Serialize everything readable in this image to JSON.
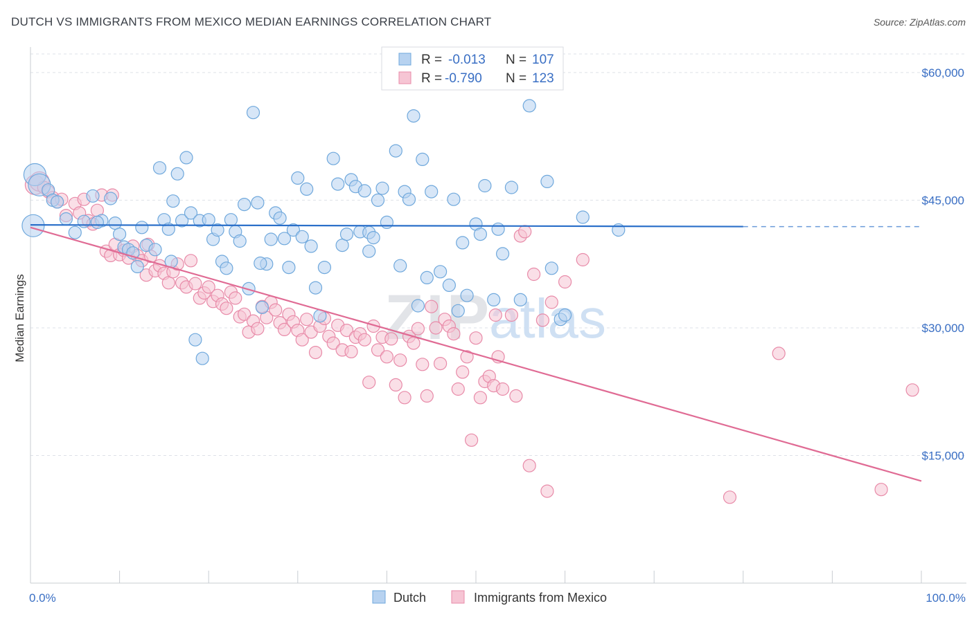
{
  "title": "DUTCH VS IMMIGRANTS FROM MEXICO MEDIAN EARNINGS CORRELATION CHART",
  "source": "Source: ZipAtlas.com",
  "watermark": {
    "zip": "ZIP",
    "atlas": "atlas"
  },
  "colors": {
    "dutch": "#6fa8dc",
    "dutch_fill": "#b7d2f0",
    "dutch_line": "#2a6fc9",
    "mexico": "#e88aa8",
    "mexico_fill": "#f6c5d4",
    "mexico_line": "#e06b94",
    "tick_label": "#3a6fc4",
    "grid": "#dde1e7"
  },
  "legend": {
    "rows": [
      {
        "r_label": "R =",
        "r_value": "-0.013",
        "n_label": "N =",
        "n_value": "107"
      },
      {
        "r_label": "R =",
        "r_value": "-0.790",
        "n_label": "N =",
        "n_value": "123"
      }
    ]
  },
  "bottom_legend": [
    "Dutch",
    "Immigrants from Mexico"
  ],
  "chart_data": {
    "type": "scatter",
    "title": "DUTCH VS IMMIGRANTS FROM MEXICO MEDIAN EARNINGS CORRELATION CHART",
    "xlabel": "",
    "ylabel": "Median Earnings",
    "xlim": [
      0,
      100
    ],
    "ylim": [
      0,
      63000
    ],
    "x_tick_labels": [
      "0.0%",
      "100.0%"
    ],
    "y_ticks": [
      15000,
      30000,
      45000,
      60000
    ],
    "y_tick_labels": [
      "$15,000",
      "$30,000",
      "$45,000",
      "$60,000"
    ],
    "grid": true,
    "legend_position": "top-center",
    "series": [
      {
        "name": "Dutch",
        "r": -0.013,
        "n": 107,
        "trend": {
          "x": [
            0,
            80
          ],
          "y": [
            42100,
            41900
          ],
          "dashed_to_x": 100
        },
        "points": [
          [
            0.5,
            48000
          ],
          [
            0.3,
            42000
          ],
          [
            1.0,
            46800
          ],
          [
            2.0,
            46200
          ],
          [
            2.5,
            45000
          ],
          [
            3.0,
            44800
          ],
          [
            4.0,
            42800
          ],
          [
            5.0,
            41200
          ],
          [
            6.0,
            42500
          ],
          [
            7.0,
            45500
          ],
          [
            8.0,
            42600
          ],
          [
            9.0,
            45200
          ],
          [
            9.5,
            42300
          ],
          [
            10.0,
            41000
          ],
          [
            10.5,
            39500
          ],
          [
            11.0,
            39200
          ],
          [
            12.0,
            37200
          ],
          [
            12.5,
            41800
          ],
          [
            13.0,
            39700
          ],
          [
            14.0,
            39200
          ],
          [
            14.5,
            48800
          ],
          [
            15.0,
            42700
          ],
          [
            15.5,
            41600
          ],
          [
            16.0,
            44900
          ],
          [
            16.5,
            48100
          ],
          [
            17.0,
            42600
          ],
          [
            17.5,
            50000
          ],
          [
            18.0,
            43500
          ],
          [
            18.5,
            28600
          ],
          [
            19.0,
            42600
          ],
          [
            19.3,
            26400
          ],
          [
            20.0,
            42700
          ],
          [
            20.5,
            40400
          ],
          [
            21.0,
            41500
          ],
          [
            21.5,
            37800
          ],
          [
            22.0,
            37000
          ],
          [
            22.5,
            42700
          ],
          [
            23.0,
            41300
          ],
          [
            23.5,
            40200
          ],
          [
            24.0,
            44500
          ],
          [
            24.5,
            34600
          ],
          [
            25.0,
            55300
          ],
          [
            25.5,
            44700
          ],
          [
            26.0,
            32400
          ],
          [
            26.5,
            37500
          ],
          [
            27.0,
            40400
          ],
          [
            27.5,
            43500
          ],
          [
            28.0,
            42900
          ],
          [
            28.5,
            40500
          ],
          [
            29.0,
            37100
          ],
          [
            29.5,
            41500
          ],
          [
            30.0,
            47600
          ],
          [
            30.5,
            40700
          ],
          [
            31.0,
            46300
          ],
          [
            31.5,
            39600
          ],
          [
            32.0,
            34700
          ],
          [
            32.5,
            31400
          ],
          [
            33.0,
            37100
          ],
          [
            34.0,
            49900
          ],
          [
            34.5,
            46900
          ],
          [
            35.0,
            39700
          ],
          [
            35.5,
            41000
          ],
          [
            36.0,
            47400
          ],
          [
            36.5,
            46600
          ],
          [
            37.0,
            41300
          ],
          [
            37.5,
            46100
          ],
          [
            38.0,
            41200
          ],
          [
            38.5,
            40600
          ],
          [
            39.0,
            45000
          ],
          [
            39.5,
            46400
          ],
          [
            40.0,
            42400
          ],
          [
            41.0,
            50800
          ],
          [
            41.5,
            37300
          ],
          [
            42.0,
            46000
          ],
          [
            42.5,
            45100
          ],
          [
            43.0,
            54900
          ],
          [
            43.5,
            32600
          ],
          [
            44.0,
            49800
          ],
          [
            44.5,
            35900
          ],
          [
            45.0,
            46000
          ],
          [
            46.0,
            36600
          ],
          [
            47.0,
            35000
          ],
          [
            47.5,
            45100
          ],
          [
            48.0,
            32000
          ],
          [
            48.5,
            40000
          ],
          [
            49.0,
            33800
          ],
          [
            50.0,
            42200
          ],
          [
            50.5,
            41000
          ],
          [
            51.0,
            46700
          ],
          [
            51.5,
            60000
          ],
          [
            52.0,
            33300
          ],
          [
            52.5,
            41600
          ],
          [
            53.0,
            38700
          ],
          [
            54.0,
            46500
          ],
          [
            55.0,
            33300
          ],
          [
            56.0,
            56100
          ],
          [
            58.0,
            47200
          ],
          [
            58.5,
            37000
          ],
          [
            59.5,
            31000
          ],
          [
            66.0,
            41500
          ],
          [
            62.0,
            43000
          ],
          [
            38.0,
            39000
          ],
          [
            11.5,
            38800
          ],
          [
            7.5,
            42400
          ],
          [
            15.8,
            37800
          ],
          [
            25.8,
            37600
          ],
          [
            60.0,
            31500
          ]
        ]
      },
      {
        "name": "Immigrants from Mexico",
        "r": -0.79,
        "n": 123,
        "trend": {
          "x": [
            0,
            100
          ],
          "y": [
            41800,
            12000
          ]
        },
        "points": [
          [
            0.5,
            46800
          ],
          [
            1.0,
            47200
          ],
          [
            1.5,
            46500
          ],
          [
            2.0,
            46000
          ],
          [
            2.5,
            45300
          ],
          [
            3.0,
            44800
          ],
          [
            3.5,
            45100
          ],
          [
            4.0,
            43200
          ],
          [
            5.0,
            44600
          ],
          [
            5.5,
            43500
          ],
          [
            6.0,
            45100
          ],
          [
            6.5,
            42600
          ],
          [
            7.0,
            42200
          ],
          [
            7.5,
            43800
          ],
          [
            8.0,
            45600
          ],
          [
            8.5,
            39000
          ],
          [
            9.0,
            38500
          ],
          [
            9.5,
            39800
          ],
          [
            10.0,
            38600
          ],
          [
            10.5,
            39100
          ],
          [
            11.0,
            38200
          ],
          [
            11.5,
            39600
          ],
          [
            12.0,
            38500
          ],
          [
            12.5,
            37900
          ],
          [
            13.0,
            36200
          ],
          [
            13.5,
            38400
          ],
          [
            14.0,
            36700
          ],
          [
            14.5,
            37300
          ],
          [
            15.0,
            36400
          ],
          [
            15.5,
            35300
          ],
          [
            16.0,
            36600
          ],
          [
            16.5,
            37500
          ],
          [
            17.0,
            35300
          ],
          [
            17.5,
            34800
          ],
          [
            18.0,
            37900
          ],
          [
            18.5,
            35200
          ],
          [
            19.0,
            33500
          ],
          [
            19.5,
            34100
          ],
          [
            20.0,
            34800
          ],
          [
            20.5,
            33100
          ],
          [
            21.0,
            33800
          ],
          [
            21.5,
            32800
          ],
          [
            22.0,
            32300
          ],
          [
            22.5,
            34200
          ],
          [
            23.0,
            33500
          ],
          [
            23.5,
            31300
          ],
          [
            24.0,
            31600
          ],
          [
            24.5,
            29500
          ],
          [
            25.0,
            30800
          ],
          [
            25.5,
            29900
          ],
          [
            26.0,
            32500
          ],
          [
            26.5,
            31200
          ],
          [
            27.0,
            33000
          ],
          [
            27.5,
            32100
          ],
          [
            28.0,
            30600
          ],
          [
            28.5,
            29800
          ],
          [
            29.0,
            31600
          ],
          [
            29.5,
            30700
          ],
          [
            30.0,
            29700
          ],
          [
            30.5,
            28600
          ],
          [
            31.0,
            31000
          ],
          [
            31.5,
            29500
          ],
          [
            32.0,
            27100
          ],
          [
            32.5,
            30200
          ],
          [
            33.0,
            31100
          ],
          [
            33.5,
            29000
          ],
          [
            34.0,
            28200
          ],
          [
            34.5,
            30300
          ],
          [
            35.0,
            27400
          ],
          [
            35.5,
            29700
          ],
          [
            36.0,
            27200
          ],
          [
            36.5,
            28900
          ],
          [
            37.0,
            29300
          ],
          [
            37.5,
            28600
          ],
          [
            38.0,
            23600
          ],
          [
            38.5,
            30200
          ],
          [
            39.0,
            27400
          ],
          [
            39.5,
            28900
          ],
          [
            40.0,
            26600
          ],
          [
            40.5,
            28700
          ],
          [
            41.0,
            23300
          ],
          [
            41.5,
            26200
          ],
          [
            42.0,
            21800
          ],
          [
            42.5,
            29000
          ],
          [
            43.0,
            28200
          ],
          [
            43.5,
            29900
          ],
          [
            44.0,
            25700
          ],
          [
            44.5,
            22000
          ],
          [
            45.0,
            32500
          ],
          [
            45.5,
            30000
          ],
          [
            46.0,
            25800
          ],
          [
            46.5,
            31000
          ],
          [
            47.0,
            30200
          ],
          [
            47.5,
            29300
          ],
          [
            48.0,
            22800
          ],
          [
            48.5,
            24800
          ],
          [
            49.0,
            26600
          ],
          [
            49.5,
            16800
          ],
          [
            50.0,
            28800
          ],
          [
            50.5,
            21800
          ],
          [
            51.0,
            23700
          ],
          [
            51.5,
            24300
          ],
          [
            52.0,
            23200
          ],
          [
            52.5,
            26600
          ],
          [
            53.0,
            22800
          ],
          [
            54.0,
            31500
          ],
          [
            54.5,
            22000
          ],
          [
            55.0,
            40800
          ],
          [
            55.5,
            41300
          ],
          [
            56.5,
            36300
          ],
          [
            57.5,
            30900
          ],
          [
            58.0,
            10800
          ],
          [
            58.5,
            33000
          ],
          [
            60.0,
            35400
          ],
          [
            56.0,
            13800
          ],
          [
            78.5,
            10100
          ],
          [
            84.0,
            27000
          ],
          [
            95.5,
            11000
          ],
          [
            99.0,
            22700
          ],
          [
            62.0,
            38000
          ],
          [
            13.2,
            39800
          ],
          [
            9.2,
            45600
          ],
          [
            52.2,
            31500
          ]
        ]
      }
    ]
  }
}
